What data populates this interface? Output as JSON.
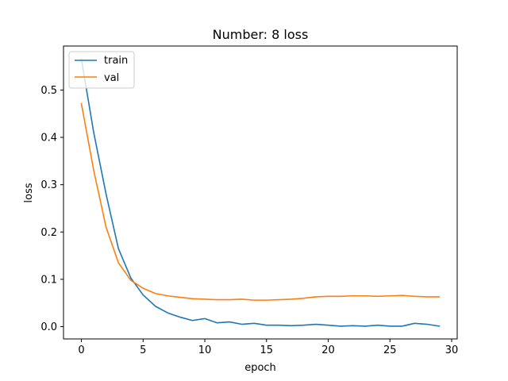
{
  "chart_data": {
    "type": "line",
    "title": "Number: 8 loss",
    "xlabel": "epoch",
    "ylabel": "loss",
    "xlim": [
      -1.45,
      30.45
    ],
    "ylim": [
      -0.026,
      0.593
    ],
    "xticks": [
      0,
      5,
      10,
      15,
      20,
      25,
      30
    ],
    "yticks": [
      0.0,
      0.1,
      0.2,
      0.3,
      0.4,
      0.5
    ],
    "ytick_labels": [
      "0.0",
      "0.1",
      "0.2",
      "0.3",
      "0.4",
      "0.5"
    ],
    "grid": false,
    "legend_position": "upper-left",
    "series": [
      {
        "name": "train",
        "color": "#1f77b4",
        "x": [
          0,
          1,
          2,
          3,
          4,
          5,
          6,
          7,
          8,
          9,
          10,
          11,
          12,
          13,
          14,
          15,
          16,
          17,
          18,
          19,
          20,
          21,
          22,
          23,
          24,
          25,
          26,
          27,
          28,
          29
        ],
        "y": [
          0.565,
          0.41,
          0.28,
          0.165,
          0.103,
          0.067,
          0.043,
          0.029,
          0.02,
          0.013,
          0.017,
          0.008,
          0.01,
          0.005,
          0.007,
          0.003,
          0.003,
          0.002,
          0.003,
          0.005,
          0.003,
          0.001,
          0.002,
          0.001,
          0.003,
          0.001,
          0.001,
          0.007,
          0.005,
          0.001
        ]
      },
      {
        "name": "val",
        "color": "#ff7f0e",
        "x": [
          0,
          1,
          2,
          3,
          4,
          5,
          6,
          7,
          8,
          9,
          10,
          11,
          12,
          13,
          14,
          15,
          16,
          17,
          18,
          19,
          20,
          21,
          22,
          23,
          24,
          25,
          26,
          27,
          28,
          29
        ],
        "y": [
          0.471,
          0.33,
          0.21,
          0.135,
          0.098,
          0.081,
          0.07,
          0.065,
          0.062,
          0.059,
          0.058,
          0.057,
          0.057,
          0.058,
          0.056,
          0.056,
          0.057,
          0.058,
          0.06,
          0.063,
          0.064,
          0.064,
          0.065,
          0.065,
          0.064,
          0.065,
          0.066,
          0.064,
          0.063,
          0.063
        ]
      }
    ]
  }
}
